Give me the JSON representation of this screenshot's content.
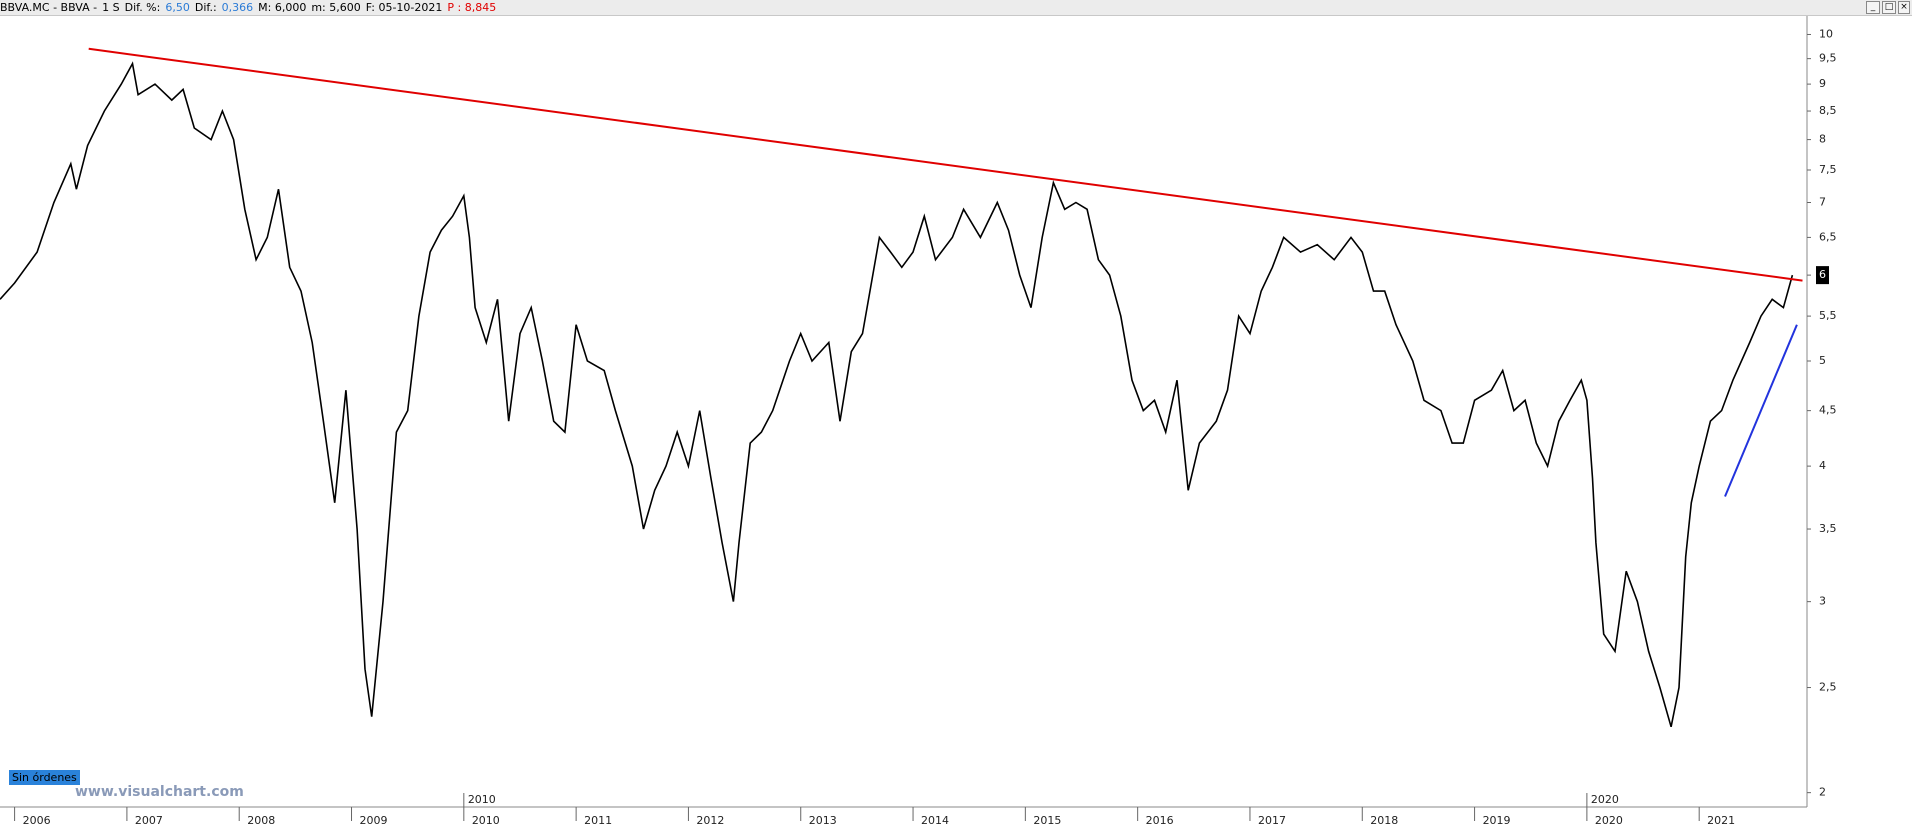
{
  "chart_data": {
    "type": "line",
    "header": {
      "symbol": "BBVA.MC - BBVA -",
      "period": "1 S",
      "dif_pct_label": "Dif. %:",
      "dif_pct": "6,50",
      "dif_label": "Dif.:",
      "dif": "0,366",
      "max_label": "M: 6,000",
      "min_label": "m: 5,600",
      "date_label": "F: 05-10-2021",
      "p_label": "P : 8,845"
    },
    "button": "Sin órdenes",
    "watermark": "www.visualchart.com",
    "log_scale": true,
    "color": "#000000",
    "x": [
      2005.87,
      2006.0,
      2006.2,
      2006.35,
      2006.5,
      2006.55,
      2006.65,
      2006.8,
      2006.95,
      2007.05,
      2007.1,
      2007.25,
      2007.4,
      2007.5,
      2007.6,
      2007.75,
      2007.85,
      2007.95,
      2008.05,
      2008.15,
      2008.25,
      2008.35,
      2008.45,
      2008.55,
      2008.65,
      2008.75,
      2008.85,
      2008.95,
      2009.05,
      2009.12,
      2009.18,
      2009.28,
      2009.4,
      2009.5,
      2009.6,
      2009.7,
      2009.8,
      2009.9,
      2010.0,
      2010.05,
      2010.1,
      2010.2,
      2010.3,
      2010.4,
      2010.5,
      2010.6,
      2010.7,
      2010.8,
      2010.9,
      2011.0,
      2011.1,
      2011.25,
      2011.35,
      2011.5,
      2011.6,
      2011.7,
      2011.8,
      2011.9,
      2012.0,
      2012.1,
      2012.2,
      2012.3,
      2012.4,
      2012.45,
      2012.55,
      2012.65,
      2012.75,
      2012.9,
      2013.0,
      2013.1,
      2013.25,
      2013.35,
      2013.45,
      2013.55,
      2013.7,
      2013.8,
      2013.9,
      2014.0,
      2014.1,
      2014.2,
      2014.35,
      2014.45,
      2014.6,
      2014.75,
      2014.85,
      2014.95,
      2015.05,
      2015.15,
      2015.25,
      2015.35,
      2015.45,
      2015.55,
      2015.65,
      2015.75,
      2015.85,
      2015.95,
      2016.05,
      2016.15,
      2016.25,
      2016.35,
      2016.45,
      2016.55,
      2016.7,
      2016.8,
      2016.9,
      2017.0,
      2017.1,
      2017.2,
      2017.3,
      2017.45,
      2017.6,
      2017.75,
      2017.9,
      2018.0,
      2018.1,
      2018.2,
      2018.3,
      2018.45,
      2018.55,
      2018.7,
      2018.8,
      2018.9,
      2019.0,
      2019.15,
      2019.25,
      2019.35,
      2019.45,
      2019.55,
      2019.65,
      2019.75,
      2019.85,
      2019.95,
      2020.0,
      2020.05,
      2020.08,
      2020.15,
      2020.25,
      2020.35,
      2020.45,
      2020.55,
      2020.65,
      2020.75,
      2020.82,
      2020.88,
      2020.93,
      2021.0,
      2021.1,
      2021.2,
      2021.3,
      2021.45,
      2021.55,
      2021.65,
      2021.75,
      2021.83
    ],
    "values": [
      5.7,
      5.9,
      6.3,
      7.0,
      7.6,
      7.2,
      7.9,
      8.5,
      9.0,
      9.4,
      8.8,
      9.0,
      8.7,
      8.9,
      8.2,
      8.0,
      8.5,
      8.0,
      6.9,
      6.2,
      6.5,
      7.2,
      6.1,
      5.8,
      5.2,
      4.4,
      3.7,
      4.7,
      3.5,
      2.6,
      2.35,
      3.0,
      4.3,
      4.5,
      5.5,
      6.3,
      6.6,
      6.8,
      7.1,
      6.5,
      5.6,
      5.2,
      5.7,
      4.4,
      5.3,
      5.6,
      5.0,
      4.4,
      4.3,
      5.4,
      5.0,
      4.9,
      4.5,
      4.0,
      3.5,
      3.8,
      4.0,
      4.3,
      4.0,
      4.5,
      3.9,
      3.4,
      3.0,
      3.4,
      4.2,
      4.3,
      4.5,
      5.0,
      5.3,
      5.0,
      5.2,
      4.4,
      5.1,
      5.3,
      6.5,
      6.3,
      6.1,
      6.3,
      6.8,
      6.2,
      6.5,
      6.9,
      6.5,
      7.0,
      6.6,
      6.0,
      5.6,
      6.5,
      7.3,
      6.9,
      7.0,
      6.9,
      6.2,
      6.0,
      5.5,
      4.8,
      4.5,
      4.6,
      4.3,
      4.8,
      3.8,
      4.2,
      4.4,
      4.7,
      5.5,
      5.3,
      5.8,
      6.1,
      6.5,
      6.3,
      6.4,
      6.2,
      6.5,
      6.3,
      5.8,
      5.8,
      5.4,
      5.0,
      4.6,
      4.5,
      4.2,
      4.2,
      4.6,
      4.7,
      4.9,
      4.5,
      4.6,
      4.2,
      4.0,
      4.4,
      4.6,
      4.8,
      4.6,
      3.9,
      3.4,
      2.8,
      2.7,
      3.2,
      3.0,
      2.7,
      2.5,
      2.3,
      2.5,
      3.3,
      3.7,
      4.0,
      4.4,
      4.5,
      4.8,
      5.2,
      5.5,
      5.7,
      5.6,
      6.0
    ],
    "last_value": 6,
    "trendlines": [
      {
        "color": "#e00000",
        "x": [
          2006.66,
          2021.92
        ],
        "values": [
          9.7,
          5.93
        ]
      },
      {
        "color": "#2233dd",
        "x": [
          2021.23,
          2021.87
        ],
        "values": [
          3.75,
          5.4
        ]
      }
    ],
    "xlim": [
      2005.87,
      2021.96
    ],
    "xticks": [
      2006,
      2007,
      2008,
      2009,
      2010,
      2011,
      2012,
      2013,
      2014,
      2015,
      2016,
      2017,
      2018,
      2019,
      2020,
      2021
    ],
    "x_decade_ticks": [
      2010,
      2020
    ],
    "ylim": [
      1.94,
      10.4
    ],
    "yticks": [
      2,
      {
        "value": 2.5,
        "label": "2,5"
      },
      3,
      {
        "value": 3.5,
        "label": "3,5"
      },
      4,
      {
        "value": 4.5,
        "label": "4,5"
      },
      5,
      {
        "value": 5.5,
        "label": "5,5"
      },
      6,
      {
        "value": 6.5,
        "label": "6,5"
      },
      7,
      {
        "value": 7.5,
        "label": "7,5"
      },
      8,
      {
        "value": 8.5,
        "label": "8,5"
      },
      9,
      {
        "value": 9.5,
        "label": "9,5"
      },
      10
    ]
  }
}
